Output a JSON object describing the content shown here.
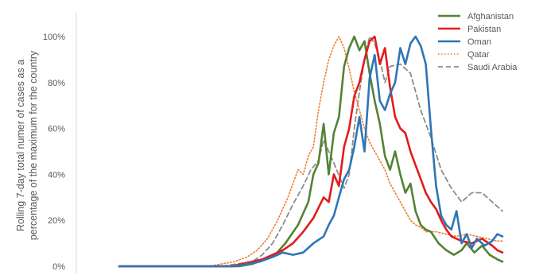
{
  "chart_data": {
    "type": "line",
    "title": "",
    "xlabel": "",
    "ylabel_lines": [
      "Rolling 7-day total numer of cases as a",
      "percentage of the maximum for the country"
    ],
    "ylim": [
      0,
      100
    ],
    "yticks": [
      "0%",
      "20%",
      "40%",
      "60%",
      "80%",
      "100%"
    ],
    "ytick_values": [
      0,
      20,
      40,
      60,
      80,
      100
    ],
    "grid": false,
    "legend_position": "top-right",
    "xlim": [
      0,
      150
    ],
    "series": [
      {
        "name": "Afghanistan",
        "color": "#548235",
        "dash": "solid",
        "x": [
          0,
          40,
          47,
          52,
          57,
          61,
          65,
          70,
          74,
          76,
          78,
          80,
          82,
          84,
          86,
          88,
          90,
          92,
          94,
          96,
          98,
          100,
          102,
          104,
          106,
          108,
          110,
          112,
          114,
          116,
          118,
          120,
          122,
          125,
          128,
          131,
          134,
          136,
          139,
          142,
          145,
          148,
          150
        ],
        "y": [
          0,
          0,
          0,
          1,
          3,
          5,
          10,
          18,
          28,
          40,
          45,
          62,
          40,
          58,
          65,
          87,
          95,
          100,
          94,
          98,
          84,
          72,
          62,
          48,
          42,
          50,
          40,
          32,
          36,
          24,
          18,
          16,
          15,
          10,
          7,
          5,
          7,
          10,
          6,
          9,
          5,
          3,
          2
        ]
      },
      {
        "name": "Pakistan",
        "color": "#e31b1b",
        "dash": "solid",
        "x": [
          0,
          39,
          44,
          48,
          52,
          56,
          60,
          64,
          68,
          72,
          76,
          80,
          82,
          84,
          86,
          88,
          90,
          92,
          94,
          96,
          98,
          100,
          102,
          104,
          106,
          108,
          110,
          112,
          114,
          116,
          118,
          120,
          122,
          124,
          126,
          128,
          130,
          134,
          138,
          142,
          146,
          148,
          150
        ],
        "y": [
          0,
          0,
          0,
          1,
          2,
          3,
          5,
          7,
          10,
          15,
          21,
          30,
          28,
          40,
          35,
          52,
          60,
          74,
          80,
          90,
          98,
          100,
          88,
          95,
          78,
          65,
          60,
          58,
          50,
          44,
          38,
          32,
          28,
          25,
          20,
          16,
          13,
          11,
          10,
          12,
          9,
          7,
          6
        ]
      },
      {
        "name": "Oman",
        "color": "#2e75b6",
        "dash": "solid",
        "x": [
          0,
          38,
          45,
          50,
          55,
          60,
          64,
          68,
          72,
          76,
          80,
          82,
          84,
          86,
          88,
          90,
          92,
          94,
          96,
          98,
          100,
          102,
          104,
          106,
          108,
          110,
          112,
          114,
          116,
          118,
          120,
          122,
          124,
          126,
          128,
          130,
          132,
          134,
          136,
          138,
          140,
          143,
          146,
          148,
          150
        ],
        "y": [
          0,
          0,
          0,
          1,
          2,
          4,
          6,
          5,
          6,
          10,
          13,
          18,
          22,
          30,
          38,
          42,
          52,
          65,
          50,
          82,
          92,
          72,
          68,
          75,
          80,
          95,
          88,
          97,
          100,
          96,
          88,
          60,
          35,
          22,
          18,
          16,
          24,
          10,
          14,
          8,
          12,
          9,
          11,
          14,
          13
        ]
      },
      {
        "name": "Qatar",
        "color": "#ed7d31",
        "dash": "dotted",
        "x": [
          0,
          35,
          40,
          45,
          50,
          54,
          58,
          62,
          66,
          70,
          72,
          74,
          76,
          78,
          80,
          82,
          84,
          86,
          88,
          90,
          92,
          94,
          96,
          98,
          100,
          102,
          104,
          106,
          108,
          110,
          112,
          114,
          116,
          118,
          120,
          124,
          128,
          132,
          136,
          140,
          144,
          148,
          150
        ],
        "y": [
          0,
          0,
          1,
          2,
          4,
          7,
          12,
          20,
          30,
          42,
          40,
          48,
          52,
          68,
          80,
          90,
          96,
          100,
          95,
          86,
          76,
          68,
          60,
          54,
          50,
          46,
          42,
          36,
          32,
          28,
          24,
          20,
          18,
          17,
          15,
          15,
          14,
          13,
          14,
          13,
          12,
          11,
          11
        ]
      },
      {
        "name": "Saudi Arabia",
        "color": "#8c8c8c",
        "dash": "dashed",
        "x": [
          0,
          40,
          46,
          52,
          56,
          60,
          64,
          68,
          72,
          75,
          78,
          80,
          84,
          88,
          90,
          92,
          94,
          96,
          98,
          100,
          102,
          104,
          106,
          110,
          114,
          118,
          122,
          126,
          130,
          134,
          138,
          142,
          146,
          150
        ],
        "y": [
          0,
          0,
          1,
          2,
          5,
          10,
          18,
          27,
          35,
          42,
          46,
          55,
          45,
          34,
          40,
          60,
          76,
          90,
          100,
          97,
          90,
          80,
          87,
          88,
          84,
          68,
          56,
          42,
          34,
          28,
          32,
          32,
          28,
          24
        ]
      }
    ]
  }
}
